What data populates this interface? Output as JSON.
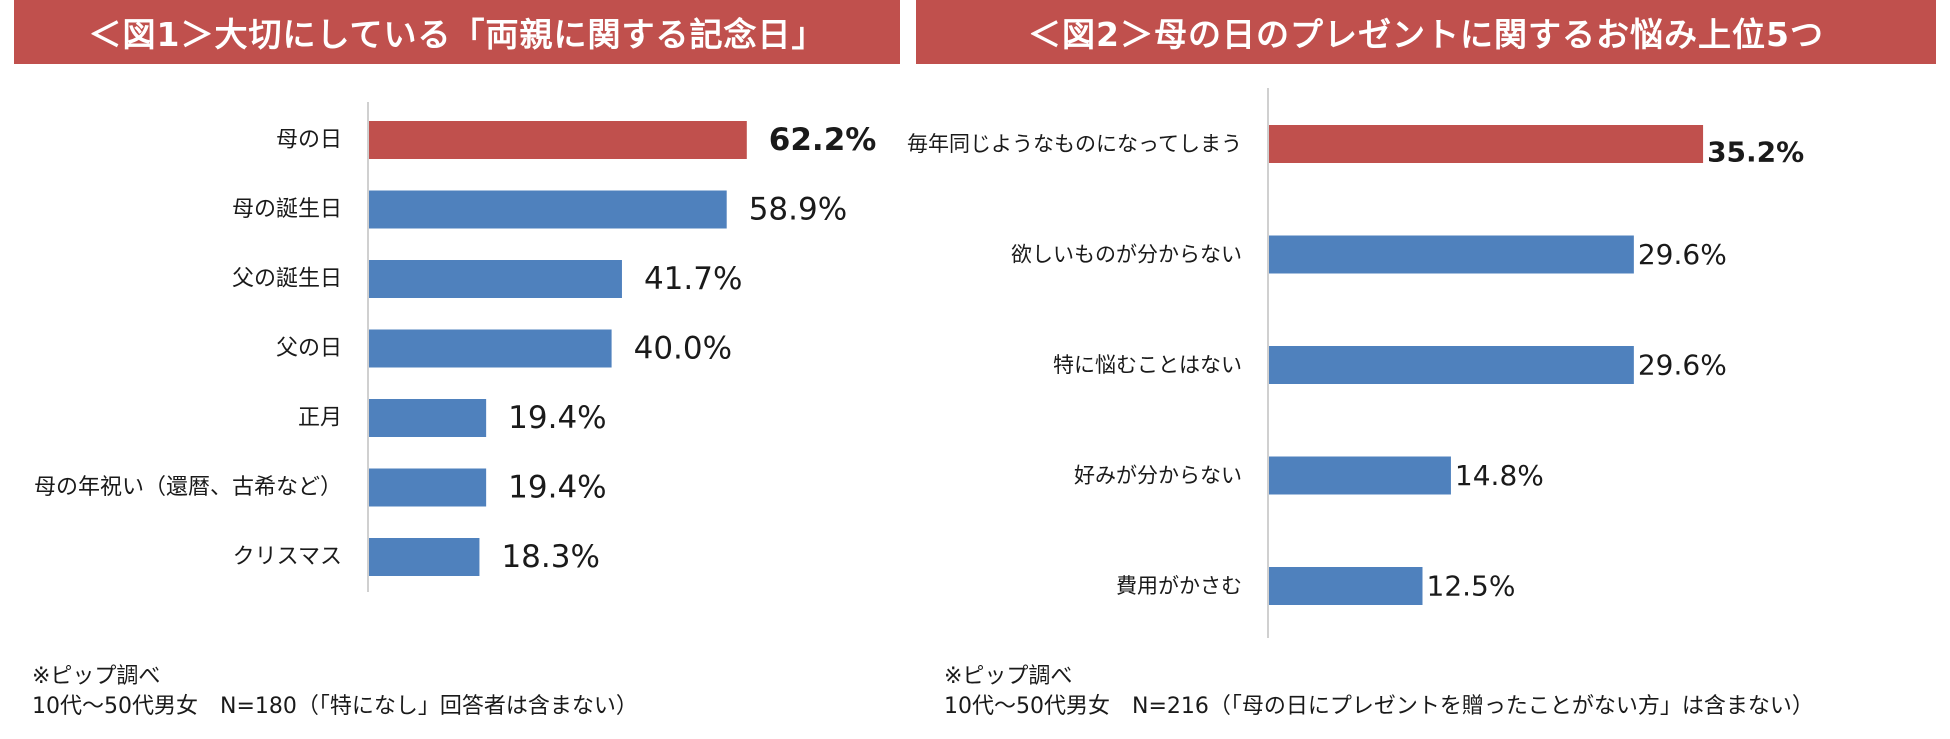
{
  "chart_data": [
    {
      "type": "bar",
      "orientation": "horizontal",
      "title": "＜図1＞大切にしている「両親に関する記念日」",
      "categories": [
        "母の日",
        "母の誕生日",
        "父の誕生日",
        "父の日",
        "正月",
        "母の年祝い（還暦、古希など）",
        "クリスマス"
      ],
      "values": [
        62.2,
        58.9,
        41.7,
        40.0,
        19.4,
        19.4,
        18.3
      ],
      "labels": [
        "62.2%",
        "58.9%",
        "41.7%",
        "40.0%",
        "19.4%",
        "19.4%",
        "18.3%"
      ],
      "highlight_index": 0,
      "xlim": [
        0,
        100
      ],
      "xlabel": "",
      "ylabel": "",
      "grid": false,
      "legend": "none",
      "source_note": "※ピップ調べ",
      "sample_note": "10代～50代男女　N=180（「特になし」回答者は含まない）"
    },
    {
      "type": "bar",
      "orientation": "horizontal",
      "title": "＜図2＞母の日のプレゼントに関するお悩み上位5つ",
      "categories": [
        "毎年同じようなものになってしまう",
        "欲しいものが分からない",
        "特に悩むことはない",
        "好みが分からない",
        "費用がかさむ"
      ],
      "values": [
        35.2,
        29.6,
        29.6,
        14.8,
        12.5
      ],
      "labels": [
        "35.2%",
        "29.6%",
        "29.6%",
        "14.8%",
        "12.5%"
      ],
      "highlight_index": 0,
      "xlim": [
        0,
        40
      ],
      "xlabel": "",
      "ylabel": "",
      "grid": false,
      "legend": "none",
      "source_note": "※ピップ調べ",
      "sample_note": "10代～50代男女　N=216（「母の日にプレゼントを贈ったことがない方」は含まない）"
    }
  ],
  "colors": {
    "banner": "#c0504d",
    "highlight_bar": "#c0504d",
    "bar": "#4f81bd",
    "axis": "#d0d0d0",
    "text": "#1a1a1a"
  }
}
